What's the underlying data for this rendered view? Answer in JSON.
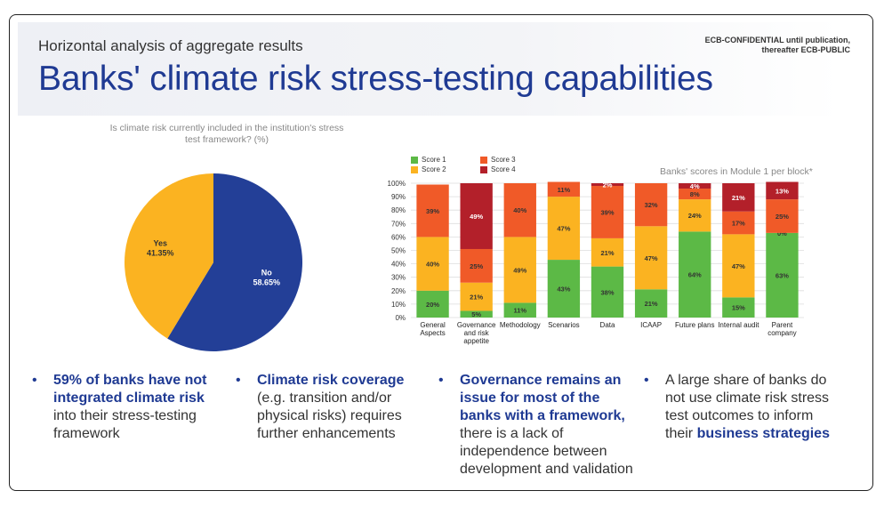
{
  "header": {
    "subtitle": "Horizontal analysis of aggregate results",
    "title": "Banks' climate risk stress-testing capabilities",
    "confidential_line1": "ECB-CONFIDENTIAL until publication,",
    "confidential_line2": "thereafter ECB-PUBLIC"
  },
  "chart_data": [
    {
      "type": "pie",
      "title": "Is climate risk currently included in the institution's stress test framework? (%)",
      "slices": [
        {
          "label": "No",
          "value": 58.65,
          "display": "58.65%",
          "color": "#233f97"
        },
        {
          "label": "Yes",
          "value": 41.35,
          "display": "41.35%",
          "color": "#fbb321"
        }
      ]
    },
    {
      "type": "bar",
      "stacked": true,
      "title": "Banks' scores in Module 1 per block*",
      "categories": [
        "General Aspects",
        "Governance and risk appetite",
        "Methodology",
        "Scenarios",
        "Data",
        "ICAAP",
        "Future plans",
        "Internal audit",
        "Parent company"
      ],
      "category_lines": [
        [
          "General",
          "Aspects"
        ],
        [
          "Governance",
          "and risk",
          "appetite"
        ],
        [
          "Methodology"
        ],
        [
          "Scenarios"
        ],
        [
          "Data"
        ],
        [
          "ICAAP"
        ],
        [
          "Future plans"
        ],
        [
          "Internal audit"
        ],
        [
          "Parent",
          "company"
        ]
      ],
      "yticks": [
        "0%",
        "10%",
        "20%",
        "30%",
        "40%",
        "50%",
        "60%",
        "70%",
        "80%",
        "90%",
        "100%"
      ],
      "ylim": [
        0,
        100
      ],
      "legend_order": [
        "Score 1",
        "Score 3",
        "Score 2",
        "Score 4"
      ],
      "series": [
        {
          "name": "Score 1",
          "color": "#5cb946",
          "values": [
            20,
            5,
            11,
            43,
            38,
            21,
            64,
            15,
            63
          ],
          "labels": [
            "20%",
            "5%",
            "11%",
            "43%",
            "38%",
            "21%",
            "64%",
            "15%",
            "63%"
          ]
        },
        {
          "name": "Score 2",
          "color": "#fbb321",
          "values": [
            40,
            21,
            49,
            47,
            21,
            47,
            24,
            47,
            0
          ],
          "labels": [
            "40%",
            "21%",
            "49%",
            "47%",
            "21%",
            "47%",
            "24%",
            "47%",
            "0%"
          ]
        },
        {
          "name": "Score 3",
          "color": "#f05a28",
          "values": [
            39,
            25,
            40,
            11,
            39,
            32,
            8,
            17,
            25
          ],
          "labels": [
            "39%",
            "25%",
            "40%",
            "11%",
            "39%",
            "32%",
            "8%",
            "17%",
            "25%"
          ]
        },
        {
          "name": "Score 4",
          "color": "#b3202a",
          "values": [
            0,
            49,
            0,
            0,
            2,
            0,
            4,
            21,
            13
          ],
          "labels": [
            "",
            "49%",
            "",
            "",
            "2%",
            "",
            "4%",
            "21%",
            "13%"
          ]
        }
      ]
    }
  ],
  "bullets": [
    {
      "bold": "59% of banks have not integrated climate risk",
      "rest": "into their stress-testing framework"
    },
    {
      "bold": "Climate risk coverage",
      "rest": "(e.g. transition and/or physical risks) requires further enhancements"
    },
    {
      "bold": "Governance remains an issue for most of the banks with a framework,",
      "rest": "there is a lack of independence between development and validation"
    },
    {
      "pre": "A large share of banks do not use climate risk stress test outcomes to inform their",
      "bold": "business strategies"
    }
  ],
  "bullet_char": "•"
}
